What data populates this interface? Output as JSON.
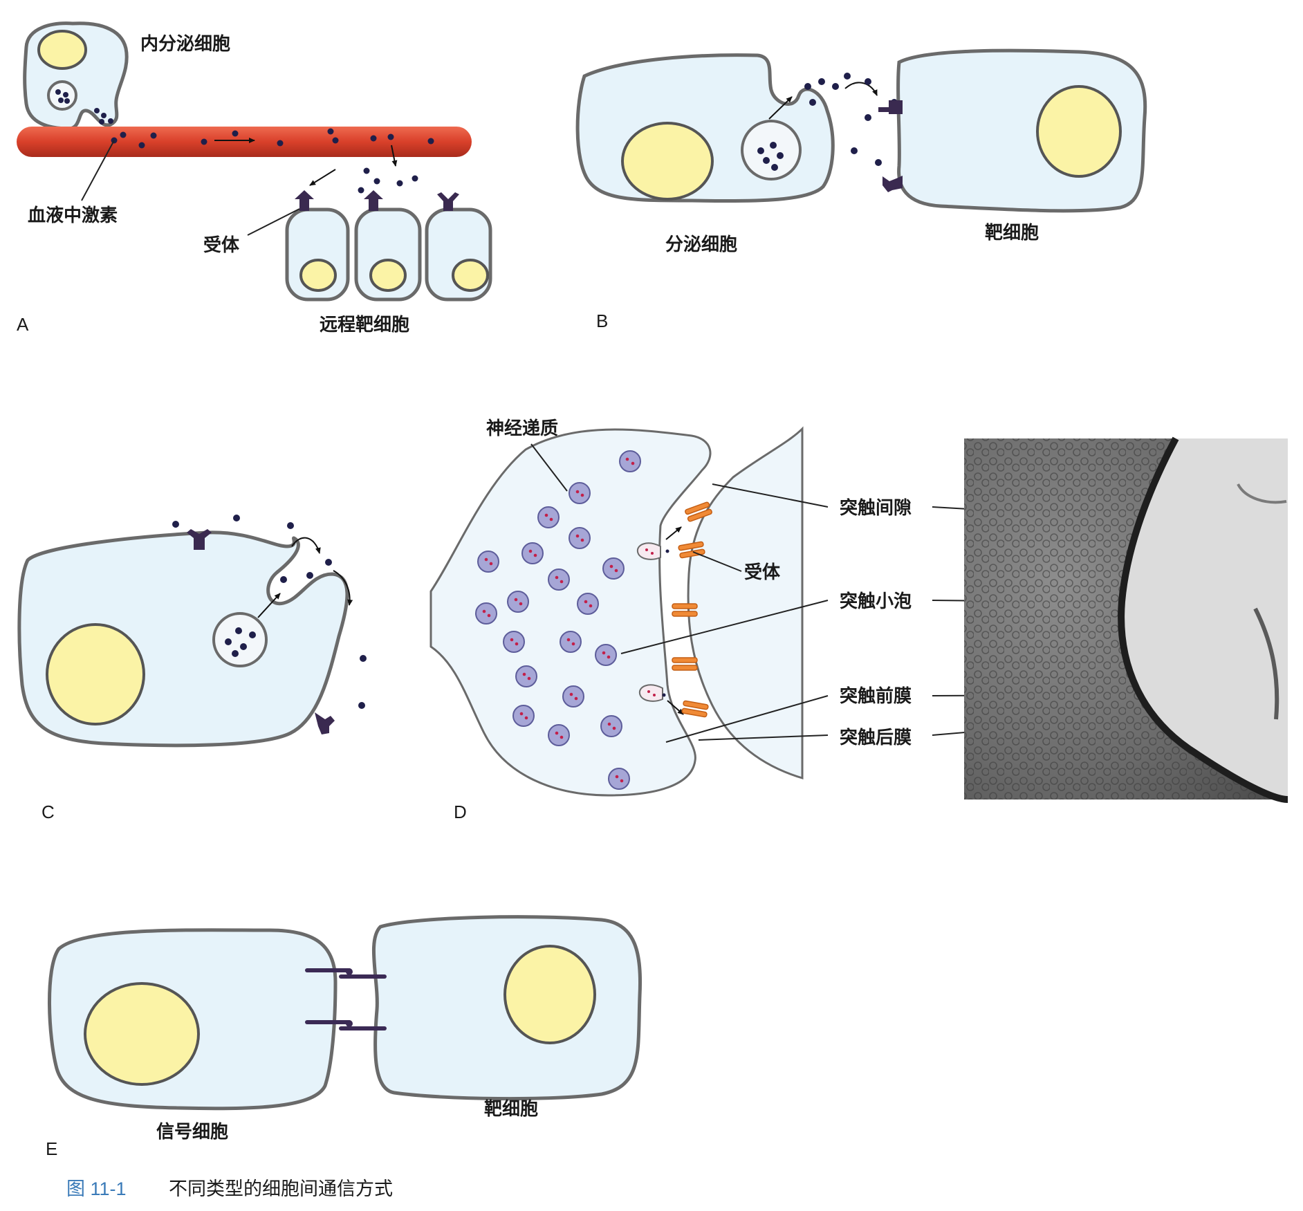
{
  "panels": {
    "A": {
      "letter": "A",
      "labels": {
        "endocrine_cell": "内分泌细胞",
        "blood_hormone": "血液中激素",
        "receptor": "受体",
        "distant_target": "远程靶细胞"
      }
    },
    "B": {
      "letter": "B",
      "labels": {
        "secreting_cell": "分泌细胞",
        "target_cell": "靶细胞"
      }
    },
    "C": {
      "letter": "C"
    },
    "D": {
      "letter": "D",
      "labels": {
        "neurotransmitter": "神经递质",
        "receptor": "受体",
        "synaptic_cleft": "突触间隙",
        "synaptic_vesicle": "突触小泡",
        "presynaptic_membrane": "突触前膜",
        "postsynaptic_membrane": "突触后膜"
      }
    },
    "E": {
      "letter": "E",
      "labels": {
        "signal_cell": "信号细胞",
        "target_cell": "靶细胞"
      }
    }
  },
  "caption": {
    "number": "图 11-1",
    "text": "不同类型的细胞间通信方式"
  },
  "colors": {
    "cytoplasm": "#e6f3fa",
    "nucleus": "#fbf3a6",
    "blood_vessel": "#d9402a",
    "receptor": "#3a2a50",
    "postsynaptic_receptor": "#f08a36",
    "caption_number": "#3a7ab8"
  }
}
